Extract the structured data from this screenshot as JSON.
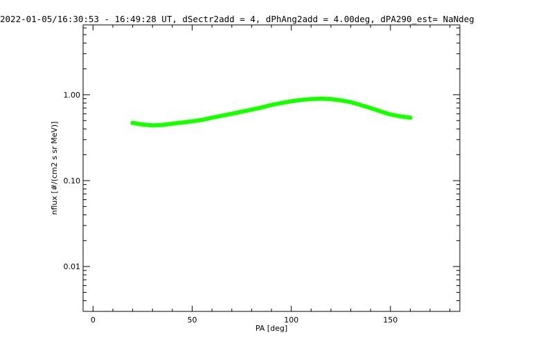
{
  "chart_data": {
    "type": "scatter",
    "title": "2022-01-05/16:30:53 - 16:49:28 UT, dSectr2add = 4, dPhAng2add = 4.00deg, dPA290_est=    NaNdeg",
    "xlabel": "PA [deg]",
    "ylabel": "nflux [#/(cm2 s sr MeV)]",
    "xlim": [
      -5,
      185
    ],
    "ylim": [
      0.003,
      6.5
    ],
    "y_scale": "log",
    "xticks": [
      0,
      50,
      100,
      150
    ],
    "xtick_labels": [
      "0",
      "50",
      "100",
      "150"
    ],
    "yticks": [
      0.01,
      0.1,
      1.0
    ],
    "ytick_labels": [
      "0.01",
      "0.10",
      "1.00"
    ],
    "grid": false,
    "color": "#1aff00",
    "x": [
      20,
      25,
      30,
      35,
      40,
      45,
      50,
      55,
      60,
      65,
      70,
      75,
      80,
      85,
      90,
      95,
      100,
      105,
      110,
      115,
      120,
      125,
      130,
      135,
      140,
      145,
      150,
      155,
      160
    ],
    "y": [
      0.47,
      0.45,
      0.44,
      0.445,
      0.46,
      0.475,
      0.49,
      0.51,
      0.54,
      0.57,
      0.6,
      0.635,
      0.67,
      0.71,
      0.76,
      0.8,
      0.84,
      0.87,
      0.89,
      0.9,
      0.89,
      0.86,
      0.82,
      0.76,
      0.7,
      0.64,
      0.59,
      0.56,
      0.54
    ]
  }
}
